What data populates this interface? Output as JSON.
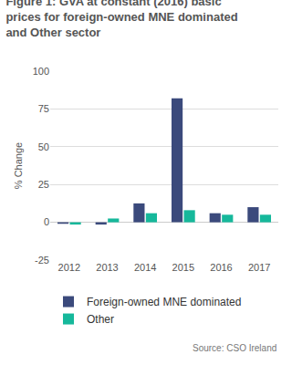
{
  "chart_data": {
    "type": "bar",
    "title": "Figure 1: GVA at constant (2016) basic prices for foreign-owned MNE dominated and Other sector",
    "y_label": "% Change",
    "categories": [
      "2012",
      "2013",
      "2014",
      "2015",
      "2016",
      "2017"
    ],
    "series": [
      {
        "name": "Foreign-owned MNE dominated",
        "color": "#3b4a7c",
        "values": [
          -1,
          -1.5,
          12.5,
          82,
          6,
          10
        ]
      },
      {
        "name": "Other",
        "color": "#16b89b",
        "values": [
          -1.5,
          2.5,
          6,
          8,
          5,
          5
        ]
      }
    ],
    "ylim": [
      -25,
      100
    ],
    "yticks": [
      -25,
      0,
      25,
      50,
      75,
      100
    ],
    "grid": true,
    "legend": "bottom",
    "annotations": [
      "Source: CSO Ireland"
    ]
  }
}
